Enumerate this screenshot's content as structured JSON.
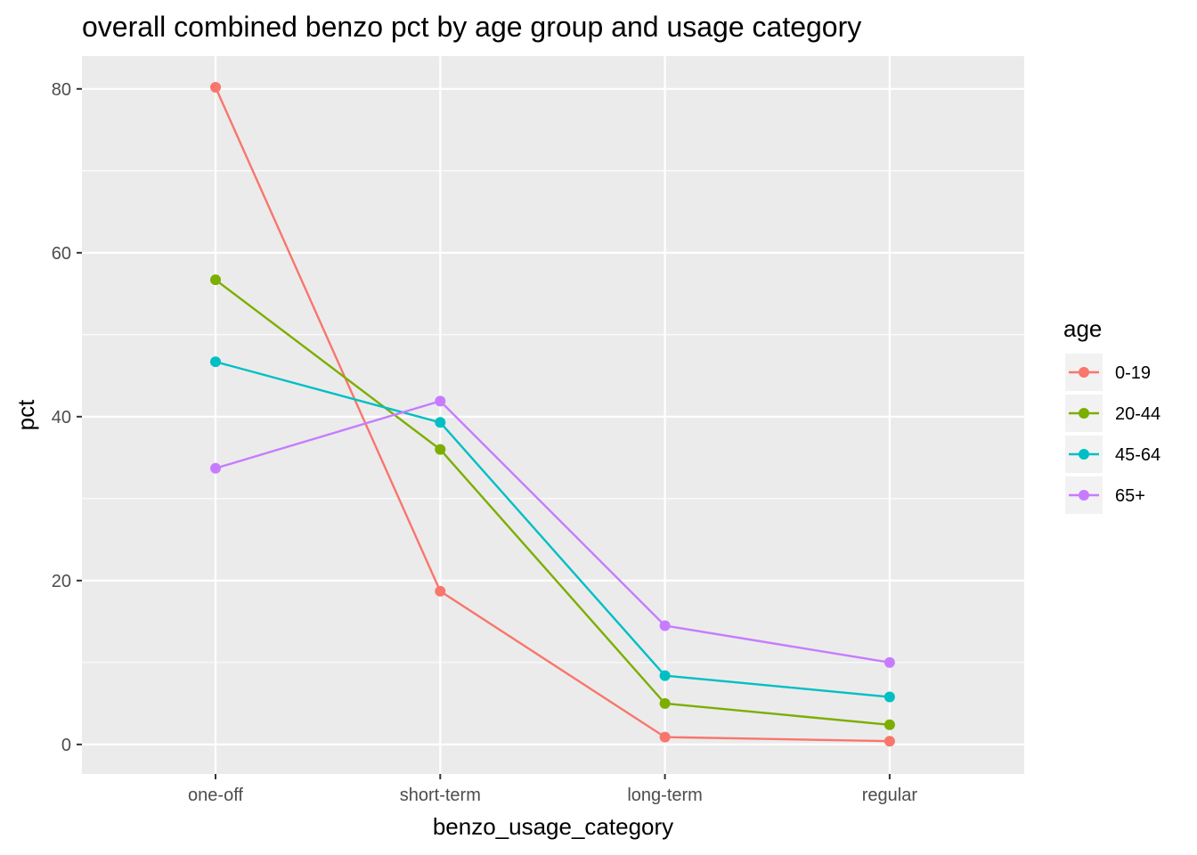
{
  "chart_data": {
    "type": "line",
    "title": "overall combined benzo pct by age group and usage category",
    "xlabel": "benzo_usage_category",
    "ylabel": "pct",
    "categories": [
      "one-off",
      "short-term",
      "long-term",
      "regular"
    ],
    "ylim": [
      -3.6,
      84
    ],
    "yticks": [
      0,
      20,
      40,
      60,
      80
    ],
    "y_minor_ticks": [
      10,
      30,
      50,
      70
    ],
    "grid": true,
    "legend": {
      "title": "age",
      "placement": "right"
    },
    "series": [
      {
        "name": "0-19",
        "color": "#F8766D",
        "values": [
          80.2,
          18.7,
          0.9,
          0.4
        ]
      },
      {
        "name": "20-44",
        "color": "#7CAE00",
        "values": [
          56.7,
          36.0,
          5.0,
          2.4
        ]
      },
      {
        "name": "45-64",
        "color": "#00BFC4",
        "values": [
          46.7,
          39.3,
          8.4,
          5.8
        ]
      },
      {
        "name": "65+",
        "color": "#C77CFF",
        "values": [
          33.7,
          41.9,
          14.5,
          10.0
        ]
      }
    ]
  },
  "colors": {
    "panel_background": "#EBEBEB",
    "grid_major": "#FFFFFF",
    "tick_text": "#4D4D4D",
    "legend_key_background": "#F2F2F2"
  }
}
